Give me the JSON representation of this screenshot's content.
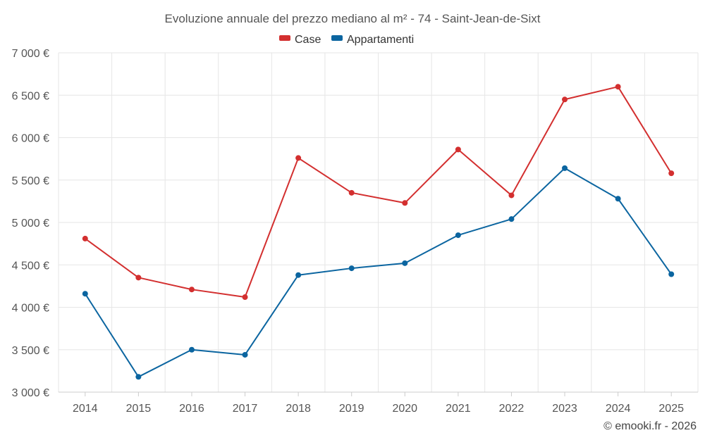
{
  "chart_data": {
    "type": "line",
    "title": "Evoluzione annuale del prezzo mediano al m² - 74 - Saint-Jean-de-Sixt",
    "categories": [
      "2014",
      "2015",
      "2016",
      "2017",
      "2018",
      "2019",
      "2020",
      "2021",
      "2022",
      "2023",
      "2024",
      "2025"
    ],
    "series": [
      {
        "name": "Case",
        "color": "#d32f2f",
        "values": [
          4810,
          4350,
          4210,
          4120,
          5760,
          5350,
          5230,
          5860,
          5320,
          6450,
          6600,
          5580
        ]
      },
      {
        "name": "Appartamenti",
        "color": "#0b65a0",
        "values": [
          4160,
          3180,
          3500,
          3440,
          4380,
          4460,
          4520,
          4850,
          5040,
          5640,
          5280,
          4390
        ]
      }
    ],
    "y_ticks": [
      3000,
      3500,
      4000,
      4500,
      5000,
      5500,
      6000,
      6500,
      7000
    ],
    "y_tick_labels": [
      "3 000 €",
      "3 500 €",
      "4 000 €",
      "4 500 €",
      "5 000 €",
      "5 500 €",
      "6 000 €",
      "6 500 €",
      "7 000 €"
    ],
    "ylim": [
      3000,
      7000
    ],
    "xlabel": "",
    "ylabel": "",
    "legend_position": "top-center",
    "grid": true
  },
  "credit": "© emooki.fr - 2026",
  "colors": {
    "grid": "#e6e6e6",
    "axis": "#cccccc",
    "text": "#555555"
  }
}
